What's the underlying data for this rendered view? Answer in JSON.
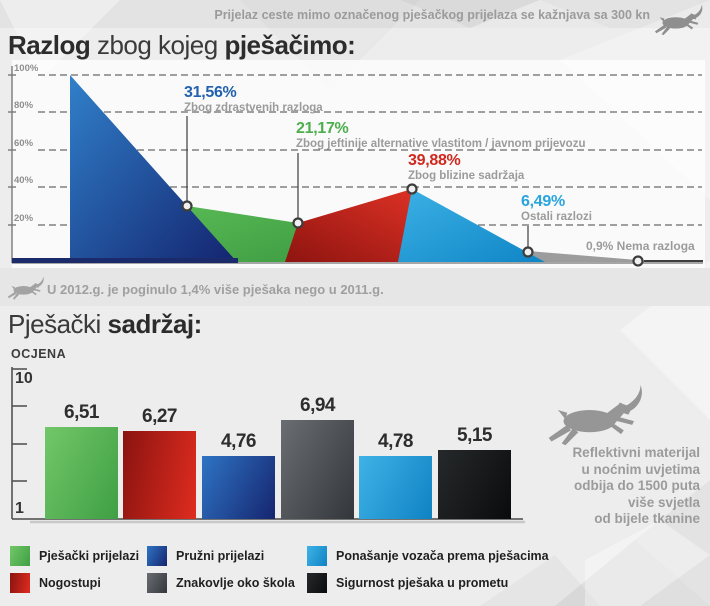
{
  "header": {
    "notice": "Prijelaz ceste mimo označenog pješačkog prijelaza se kažnjava sa 300 kn"
  },
  "section1": {
    "title": {
      "bold1": "Razlog",
      "mid": " zbog kojeg ",
      "bold2": "pješačimo:"
    }
  },
  "area_chart": {
    "y_labels": [
      "100%",
      "80%",
      "60%",
      "40%",
      "20%"
    ],
    "callouts": [
      {
        "value": "31,56%",
        "desc": "Zbog zdrastvenih razloga",
        "color": "#2261ae"
      },
      {
        "value": "21,17%",
        "desc": "Zbog jeftinije alternative vlastitom / javnom prijevozu",
        "color": "#4cae4c"
      },
      {
        "value": "39,88%",
        "desc": "Zbog blizine sadržaja",
        "color": "#d0281e"
      },
      {
        "value": "6,49%",
        "desc": "Ostali razlozi",
        "color": "#29a5de"
      },
      {
        "value": "0,9% Nema razloga",
        "desc": "",
        "color": "#9b9b9b"
      }
    ]
  },
  "fact": {
    "text": "U 2012.g. je poginulo 1,4% više pješaka nego u 2011.g."
  },
  "section2": {
    "title": {
      "regular": "Pješački ",
      "bold": "sadržaj:"
    },
    "axis_label": "OCJENA",
    "y_top": "10",
    "y_bottom": "1",
    "bars": [
      {
        "label": "Pješački prijelazi",
        "value": 6.51,
        "value_label": "6,51"
      },
      {
        "label": "Nogostupi",
        "value": 6.27,
        "value_label": "6,27"
      },
      {
        "label": "Pružni prijelazi",
        "value": 4.76,
        "value_label": "4,76"
      },
      {
        "label": "Znakovlje oko škola",
        "value": 6.94,
        "value_label": "6,94"
      },
      {
        "label": "Ponašanje vozača prema pješacima",
        "value": 4.78,
        "value_label": "4,78"
      },
      {
        "label": "Sigurnost pješaka u prometu",
        "value": 5.15,
        "value_label": "5,15"
      }
    ]
  },
  "legend": {
    "items": [
      {
        "label": "Pješački prijelazi"
      },
      {
        "label": "Pružni prijelazi"
      },
      {
        "label": "Ponašanje vozača prema pješacima"
      },
      {
        "label": "Nogostupi"
      },
      {
        "label": "Znakovlje oko škola"
      },
      {
        "label": "Sigurnost pješaka u prometu"
      }
    ]
  },
  "side_note": {
    "lines": [
      "Reflektivni materijal",
      "u noćnim uvjetima",
      "odbija do 1500 puta",
      "više svjetla",
      "od bijele tkanine"
    ]
  },
  "palette": {
    "area_blue": [
      "#3180ca",
      "#14246f"
    ],
    "area_green": [
      "#58b854",
      "#3c9a41"
    ],
    "area_red": [
      "#8e1410",
      "#e23326"
    ],
    "area_lightblue": [
      "#3cb1e5",
      "#0f85c6"
    ],
    "area_gray": "#9c9c9c",
    "bar_green": [
      "#72c768",
      "#3f9f44"
    ],
    "bar_red": [
      "#8a1310",
      "#df2c1f"
    ],
    "bar_darkblue": [
      "#2e74c4",
      "#16256f"
    ],
    "bar_darkgray": [
      "#6a6e72",
      "#33363a"
    ],
    "bar_lightblue": [
      "#3fb3e6",
      "#0f82c4"
    ],
    "bar_black": [
      "#26292b",
      "#0a0b0c"
    ],
    "background": "#ededed"
  },
  "chart_data": [
    {
      "type": "area",
      "title": "Razlog zbog kojeg pješačimo",
      "unit": "%",
      "points": [
        {
          "label": "Zbog zdrastvenih razloga",
          "value": 31.56
        },
        {
          "label": "Zbog jeftinije alternative vlastitom / javnom prijevozu",
          "value": 21.17
        },
        {
          "label": "Zbog blizine sadržaja",
          "value": 39.88
        },
        {
          "label": "Ostali razlozi",
          "value": 6.49
        },
        {
          "label": "Nema razloga",
          "value": 0.9
        }
      ],
      "ylim": [
        0,
        100
      ],
      "y_ticks": [
        "20%",
        "40%",
        "60%",
        "80%",
        "100%"
      ],
      "grid": true,
      "legend_position": "none"
    },
    {
      "type": "bar",
      "title": "Pješački sadržaj",
      "ylabel": "OCJENA",
      "ylim": [
        1,
        10
      ],
      "categories": [
        "Pješački prijelazi",
        "Nogostupi",
        "Pružni prijelazi",
        "Znakovlje oko škola",
        "Ponašanje vozača prema pješacima",
        "Sigurnost pješaka u prometu"
      ],
      "values": [
        6.51,
        6.27,
        4.76,
        6.94,
        4.78,
        5.15
      ],
      "grid": false,
      "legend_position": "bottom"
    }
  ]
}
